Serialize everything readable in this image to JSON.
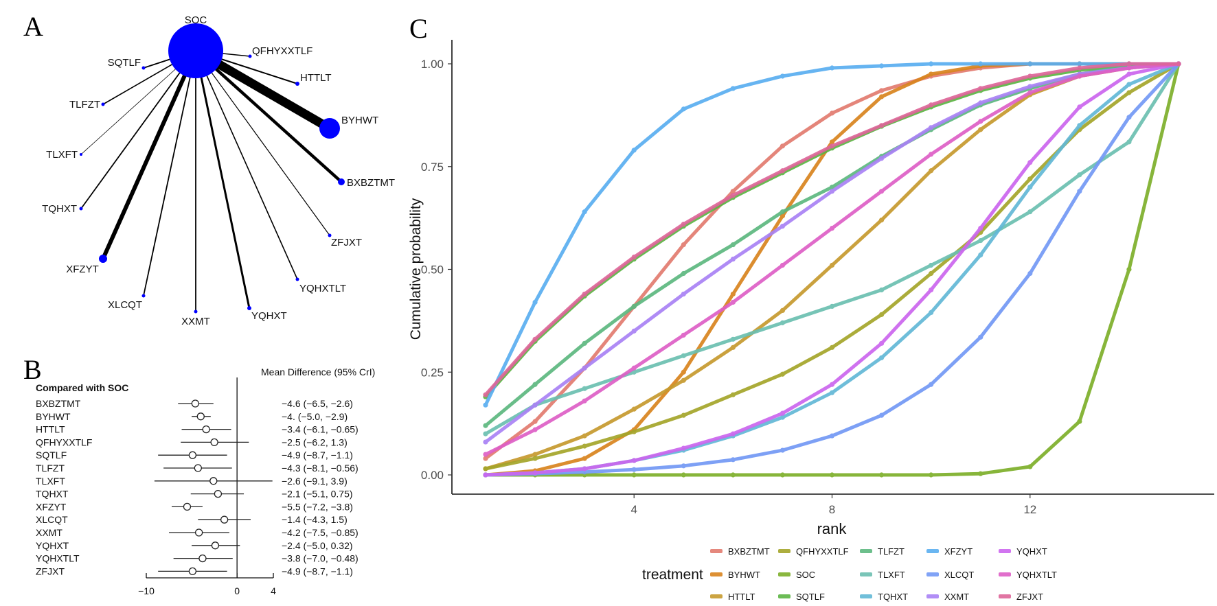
{
  "panels": {
    "a_label": "A",
    "b_label": "B",
    "c_label": "C"
  },
  "network": {
    "hub": "SOC",
    "node_color": "#0000FF",
    "edge_color": "#000000",
    "nodes": [
      "SOC",
      "QFHYXXTLF",
      "HTTLT",
      "BYHWT",
      "BXBZTMT",
      "ZFJXT",
      "YQHXTLT",
      "YQHXT",
      "XXMT",
      "XLCQT",
      "XFZYT",
      "TQHXT",
      "TLXFT",
      "TLFZT",
      "SQTLF"
    ]
  },
  "chart_data": [
    {
      "type": "forest",
      "title": "Mean Difference (95% CrI)",
      "group_label": "Compared with SOC",
      "xticks": [
        -10,
        0,
        4
      ],
      "xtick_labels": [
        "−10",
        "0",
        "4"
      ],
      "xlim": [
        -10,
        4
      ],
      "reference_line": 0,
      "rows": [
        {
          "name": "BXBZTMT",
          "mean": -4.6,
          "lower": -6.5,
          "upper": -2.6,
          "text": "−4.6 (−6.5, −2.6)"
        },
        {
          "name": "BYHWT",
          "mean": -4.0,
          "lower": -5.0,
          "upper": -2.9,
          "text": "−4. (−5.0, −2.9)"
        },
        {
          "name": "HTTLT",
          "mean": -3.4,
          "lower": -6.1,
          "upper": -0.65,
          "text": "−3.4 (−6.1, −0.65)"
        },
        {
          "name": "QFHYXXTLF",
          "mean": -2.5,
          "lower": -6.2,
          "upper": 1.3,
          "text": "−2.5 (−6.2, 1.3)"
        },
        {
          "name": "SQTLF",
          "mean": -4.9,
          "lower": -8.7,
          "upper": -1.1,
          "text": "−4.9 (−8.7, −1.1)"
        },
        {
          "name": "TLFZT",
          "mean": -4.3,
          "lower": -8.1,
          "upper": -0.56,
          "text": "−4.3 (−8.1, −0.56)"
        },
        {
          "name": "TLXFT",
          "mean": -2.6,
          "lower": -9.1,
          "upper": 3.9,
          "text": "−2.6 (−9.1, 3.9)"
        },
        {
          "name": "TQHXT",
          "mean": -2.1,
          "lower": -5.1,
          "upper": 0.75,
          "text": "−2.1 (−5.1, 0.75)"
        },
        {
          "name": "XFZYT",
          "mean": -5.5,
          "lower": -7.2,
          "upper": -3.8,
          "text": "−5.5 (−7.2, −3.8)"
        },
        {
          "name": "XLCQT",
          "mean": -1.4,
          "lower": -4.3,
          "upper": 1.5,
          "text": "−1.4 (−4.3, 1.5)"
        },
        {
          "name": "XXMT",
          "mean": -4.2,
          "lower": -7.5,
          "upper": -0.85,
          "text": "−4.2 (−7.5, −0.85)"
        },
        {
          "name": "YQHXT",
          "mean": -2.4,
          "lower": -5.0,
          "upper": 0.32,
          "text": "−2.4 (−5.0, 0.32)"
        },
        {
          "name": "YQHXTLT",
          "mean": -3.8,
          "lower": -7.0,
          "upper": -0.48,
          "text": "−3.8 (−7.0, −0.48)"
        },
        {
          "name": "ZFJXT",
          "mean": -4.9,
          "lower": -8.7,
          "upper": -1.1,
          "text": "−4.9 (−8.7, −1.1)"
        }
      ]
    },
    {
      "type": "line",
      "xlabel": "rank",
      "ylabel": "Cumulative probability",
      "x": [
        1,
        2,
        3,
        4,
        5,
        6,
        7,
        8,
        9,
        10,
        11,
        12,
        13,
        14,
        15
      ],
      "xlim": [
        1,
        15
      ],
      "ylim": [
        0,
        1
      ],
      "xticks": [
        4,
        8,
        12
      ],
      "yticks": [
        0,
        0.25,
        0.5,
        0.75,
        1.0
      ],
      "ytick_labels": [
        "0.00",
        "0.25",
        "0.50",
        "0.75",
        "1.00"
      ],
      "grid": false,
      "legend_title": "treatment",
      "legend_position": "bottom",
      "series": [
        {
          "name": "BXBZTMT",
          "color": "#E27B6F",
          "values": [
            0.04,
            0.13,
            0.26,
            0.41,
            0.56,
            0.69,
            0.8,
            0.88,
            0.935,
            0.97,
            0.99,
            1,
            1,
            1,
            1
          ]
        },
        {
          "name": "BYHWT",
          "color": "#D9841E",
          "values": [
            0.0,
            0.01,
            0.04,
            0.11,
            0.25,
            0.44,
            0.63,
            0.81,
            0.92,
            0.975,
            0.995,
            1,
            1,
            1,
            1
          ]
        },
        {
          "name": "HTTLT",
          "color": "#C69A2E",
          "values": [
            0.015,
            0.05,
            0.095,
            0.16,
            0.23,
            0.31,
            0.4,
            0.51,
            0.62,
            0.74,
            0.84,
            0.925,
            0.97,
            0.99,
            1
          ]
        },
        {
          "name": "QFHYXXTLF",
          "color": "#A4A52A",
          "values": [
            0.015,
            0.04,
            0.07,
            0.105,
            0.145,
            0.195,
            0.245,
            0.31,
            0.39,
            0.49,
            0.59,
            0.72,
            0.84,
            0.93,
            1
          ]
        },
        {
          "name": "SOC",
          "color": "#7DAF2A",
          "values": [
            0,
            0,
            0,
            0,
            0,
            0,
            0,
            0,
            0,
            0,
            0.003,
            0.02,
            0.13,
            0.5,
            1
          ]
        },
        {
          "name": "SQTLF",
          "color": "#5CB544",
          "values": [
            0.19,
            0.325,
            0.435,
            0.525,
            0.605,
            0.675,
            0.735,
            0.795,
            0.848,
            0.895,
            0.935,
            0.965,
            0.985,
            0.997,
            1
          ]
        },
        {
          "name": "TLFZT",
          "color": "#5DB87F",
          "values": [
            0.12,
            0.22,
            0.32,
            0.41,
            0.49,
            0.56,
            0.64,
            0.7,
            0.775,
            0.84,
            0.9,
            0.94,
            0.975,
            0.995,
            1
          ]
        },
        {
          "name": "TLXFT",
          "color": "#6BBFB0",
          "values": [
            0.1,
            0.17,
            0.21,
            0.25,
            0.29,
            0.33,
            0.37,
            0.41,
            0.45,
            0.51,
            0.57,
            0.64,
            0.73,
            0.81,
            1
          ]
        },
        {
          "name": "TQHXT",
          "color": "#62B8D6",
          "values": [
            0.0,
            0.005,
            0.015,
            0.035,
            0.06,
            0.095,
            0.14,
            0.2,
            0.285,
            0.395,
            0.535,
            0.7,
            0.85,
            0.95,
            1
          ]
        },
        {
          "name": "XFZYT",
          "color": "#5AAEF0",
          "values": [
            0.17,
            0.42,
            0.64,
            0.79,
            0.89,
            0.94,
            0.97,
            0.99,
            0.995,
            1,
            1,
            1,
            1,
            1,
            1
          ]
        },
        {
          "name": "XLCQT",
          "color": "#7399F5",
          "values": [
            0,
            0.003,
            0.007,
            0.013,
            0.022,
            0.037,
            0.06,
            0.095,
            0.145,
            0.22,
            0.335,
            0.49,
            0.69,
            0.87,
            1
          ]
        },
        {
          "name": "XXMT",
          "color": "#A982F5",
          "values": [
            0.08,
            0.17,
            0.26,
            0.35,
            0.44,
            0.525,
            0.605,
            0.69,
            0.77,
            0.845,
            0.905,
            0.945,
            0.975,
            0.99,
            1
          ]
        },
        {
          "name": "YQHXT",
          "color": "#CC66EE",
          "values": [
            0.0,
            0.005,
            0.015,
            0.035,
            0.065,
            0.1,
            0.15,
            0.22,
            0.32,
            0.45,
            0.6,
            0.76,
            0.895,
            0.975,
            1
          ]
        },
        {
          "name": "YQHXTLT",
          "color": "#DE5FC6",
          "values": [
            0.05,
            0.11,
            0.18,
            0.26,
            0.34,
            0.42,
            0.51,
            0.6,
            0.69,
            0.78,
            0.86,
            0.93,
            0.97,
            0.99,
            1
          ]
        },
        {
          "name": "ZFJXT",
          "color": "#DE6699",
          "values": [
            0.195,
            0.33,
            0.44,
            0.53,
            0.61,
            0.68,
            0.74,
            0.8,
            0.85,
            0.9,
            0.94,
            0.97,
            0.99,
            1,
            1
          ]
        }
      ]
    }
  ]
}
